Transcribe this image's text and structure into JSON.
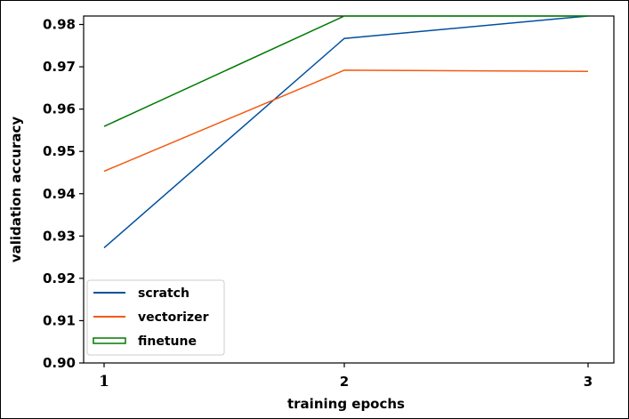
{
  "chart_data": {
    "type": "line",
    "title": "",
    "xlabel": "training epochs",
    "ylabel": "validation accuracy",
    "x": [
      1,
      2,
      3
    ],
    "x_tick_labels": [
      "1",
      "2",
      "3"
    ],
    "ylim": [
      0.9,
      0.982
    ],
    "y_ticks": [
      0.9,
      0.91,
      0.92,
      0.93,
      0.94,
      0.95,
      0.96,
      0.97,
      0.98
    ],
    "y_tick_labels": [
      "0.90",
      "0.91",
      "0.92",
      "0.93",
      "0.94",
      "0.95",
      "0.96",
      "0.97",
      "0.98"
    ],
    "grid": false,
    "legend_position": "lower-left",
    "series": [
      {
        "name": "scratch",
        "values": [
          0.9272,
          0.9767,
          0.982
        ],
        "color": "#00509e"
      },
      {
        "name": "vectorizer",
        "values": [
          0.9453,
          0.9692,
          0.9689
        ],
        "color": "#f55a12"
      },
      {
        "name": "finetune",
        "values": [
          0.9559,
          0.982,
          0.982
        ],
        "color": "#007a00"
      }
    ]
  }
}
